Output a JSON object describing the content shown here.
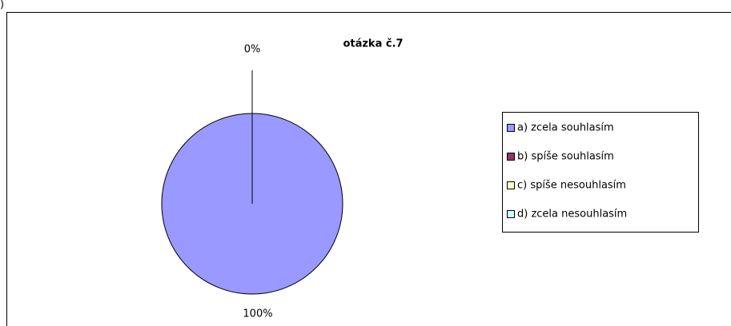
{
  "fragment": ")",
  "chart_data": {
    "type": "pie",
    "title": "otázka č.7",
    "categories": [
      "a) zcela souhlasím",
      "b) spíše souhlasím",
      "c) spíše nesouhlasím",
      "d) zcela nesouhlasím"
    ],
    "values": [
      100,
      0,
      0,
      0
    ],
    "value_labels": [
      "100%",
      "0%",
      null,
      null
    ],
    "colors": [
      "#9999ff",
      "#993366",
      "#ffffcc",
      "#ccffff"
    ],
    "legend": "right"
  }
}
